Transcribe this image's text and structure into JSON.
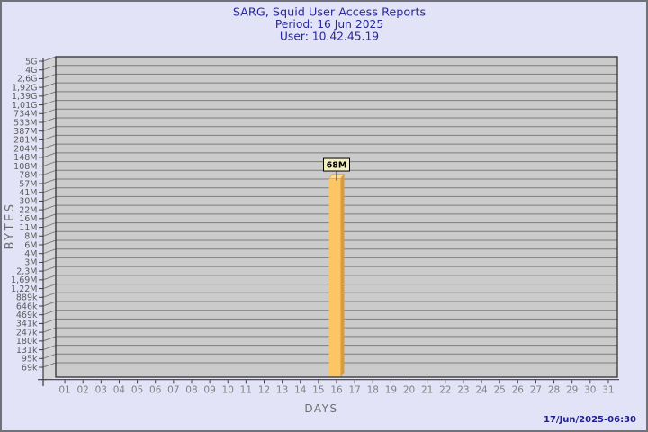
{
  "colors": {
    "background": "#E3E3F7",
    "border": "#71717B",
    "title_text": "#28289B",
    "timestamp_text": "#1F1F90",
    "axis_text": "#5C5C5C",
    "day_text": "#828282",
    "axis_title_text": "#6F6F6F",
    "plot_bg": "#CBCBCB",
    "plot_wall": "#D4D4D6",
    "grid_line": "#7D7D7D",
    "axis_line": "#3C3C3C",
    "bar_front": "#FCC665",
    "bar_side": "#D99B3B",
    "bar_top": "#FEDC9B",
    "value_box_bg": "#F3EFC0",
    "value_box_border": "#000000",
    "value_text": "#000000"
  },
  "footer": {
    "timestamp": "17/Jun/2025-06:30"
  },
  "chart_data": {
    "type": "bar",
    "title": "SARG, Squid User Access Reports",
    "subtitle1": "Period: 16 Jun 2025",
    "subtitle2": "User: 10.42.45.19",
    "xlabel": "DAYS",
    "ylabel": "BYTES",
    "y_scale": "log",
    "grid": "horizontal",
    "legend": "none",
    "y_tick_labels": [
      "5G",
      "4G",
      "2,6G",
      "1,92G",
      "1,39G",
      "1,01G",
      "734M",
      "533M",
      "387M",
      "281M",
      "204M",
      "148M",
      "108M",
      "78M",
      "57M",
      "41M",
      "30M",
      "22M",
      "16M",
      "11M",
      "8M",
      "6M",
      "4M",
      "3M",
      "2,3M",
      "1,69M",
      "1,22M",
      "889k",
      "646k",
      "469k",
      "341k",
      "247k",
      "180k",
      "131k",
      "95k",
      "69k"
    ],
    "categories": [
      "01",
      "02",
      "03",
      "04",
      "05",
      "06",
      "07",
      "08",
      "09",
      "10",
      "11",
      "12",
      "13",
      "14",
      "15",
      "16",
      "17",
      "18",
      "19",
      "20",
      "21",
      "22",
      "23",
      "24",
      "25",
      "26",
      "27",
      "28",
      "29",
      "30",
      "31"
    ],
    "values": [
      0,
      0,
      0,
      0,
      0,
      0,
      0,
      0,
      0,
      0,
      0,
      0,
      0,
      0,
      0,
      68000000,
      0,
      0,
      0,
      0,
      0,
      0,
      0,
      0,
      0,
      0,
      0,
      0,
      0,
      0,
      0
    ],
    "value_labels": [
      "",
      "",
      "",
      "",
      "",
      "",
      "",
      "",
      "",
      "",
      "",
      "",
      "",
      "",
      "",
      "68M",
      "",
      "",
      "",
      "",
      "",
      "",
      "",
      "",
      "",
      "",
      "",
      "",
      "",
      "",
      ""
    ]
  }
}
